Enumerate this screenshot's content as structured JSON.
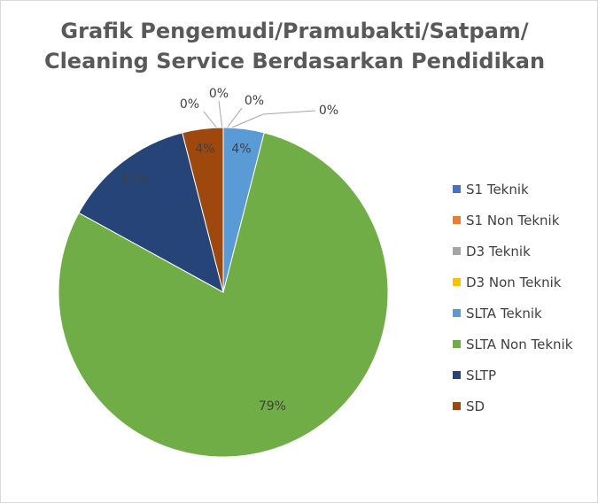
{
  "chart_data": {
    "type": "pie",
    "title_line1": "Grafik Pengemudi/Pramubakti/Satpam/",
    "title_line2": "Cleaning Service Berdasarkan Pendidikan",
    "slices": [
      {
        "name": "S1 Teknik",
        "value": 0,
        "label": "0%",
        "color": "#4472c4"
      },
      {
        "name": "S1 Non Teknik",
        "value": 0,
        "label": "0%",
        "color": "#ed7d31"
      },
      {
        "name": "D3 Teknik",
        "value": 0,
        "label": "0%",
        "color": "#a5a5a5"
      },
      {
        "name": "D3 Non Teknik",
        "value": 0,
        "label": "0%",
        "color": "#ffc000"
      },
      {
        "name": "SLTA Teknik",
        "value": 4,
        "label": "4%",
        "color": "#5b9bd5"
      },
      {
        "name": "SLTA Non Teknik",
        "value": 79,
        "label": "79%",
        "color": "#70ad47"
      },
      {
        "name": "SLTP",
        "value": 13,
        "label": "13%",
        "color": "#264478"
      },
      {
        "name": "SD",
        "value": 4,
        "label": "4%",
        "color": "#9e480e"
      }
    ],
    "legend_position": "right"
  }
}
